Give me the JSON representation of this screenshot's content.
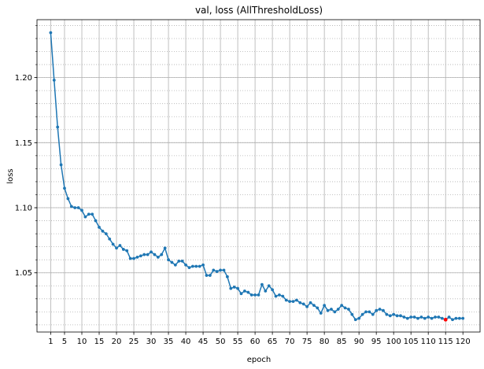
{
  "chart_data": {
    "type": "line",
    "title": "val, loss (AllThresholdLoss)",
    "xlabel": "epoch",
    "ylabel": "loss",
    "xlim": [
      -2.95,
      124.95
    ],
    "ylim": [
      1.0045,
      1.2445
    ],
    "x_ticks": [
      1,
      5,
      10,
      15,
      20,
      25,
      30,
      35,
      40,
      45,
      50,
      55,
      60,
      65,
      70,
      75,
      80,
      85,
      90,
      95,
      100,
      105,
      110,
      115,
      120
    ],
    "y_ticks": [
      1.05,
      1.1,
      1.15,
      1.2
    ],
    "y_tick_labels": [
      "1.05",
      "1.10",
      "1.15",
      "1.20"
    ],
    "y_minor_step": 0.01,
    "grid": true,
    "series": [
      {
        "color": "#1f77b4",
        "marker": "circle",
        "x": [
          1,
          2,
          3,
          4,
          5,
          6,
          7,
          8,
          9,
          10,
          11,
          12,
          13,
          14,
          15,
          16,
          17,
          18,
          19,
          20,
          21,
          22,
          23,
          24,
          25,
          26,
          27,
          28,
          29,
          30,
          31,
          32,
          33,
          34,
          35,
          36,
          37,
          38,
          39,
          40,
          41,
          42,
          43,
          44,
          45,
          46,
          47,
          48,
          49,
          50,
          51,
          52,
          53,
          54,
          55,
          56,
          57,
          58,
          59,
          60,
          61,
          62,
          63,
          64,
          65,
          66,
          67,
          68,
          69,
          70,
          71,
          72,
          73,
          74,
          75,
          76,
          77,
          78,
          79,
          80,
          81,
          82,
          83,
          84,
          85,
          86,
          87,
          88,
          89,
          90,
          91,
          92,
          93,
          94,
          95,
          96,
          97,
          98,
          99,
          100,
          101,
          102,
          103,
          104,
          105,
          106,
          107,
          108,
          109,
          110,
          111,
          112,
          113,
          114,
          115,
          116,
          117,
          118,
          119,
          120
        ],
        "y": [
          1.2345,
          1.198,
          1.162,
          1.133,
          1.115,
          1.107,
          1.101,
          1.1,
          1.1,
          1.098,
          1.093,
          1.095,
          1.095,
          1.09,
          1.085,
          1.082,
          1.08,
          1.076,
          1.072,
          1.069,
          1.071,
          1.068,
          1.067,
          1.061,
          1.061,
          1.062,
          1.063,
          1.064,
          1.064,
          1.066,
          1.064,
          1.062,
          1.064,
          1.069,
          1.06,
          1.058,
          1.056,
          1.059,
          1.059,
          1.056,
          1.054,
          1.055,
          1.055,
          1.055,
          1.056,
          1.048,
          1.048,
          1.052,
          1.051,
          1.052,
          1.052,
          1.047,
          1.038,
          1.039,
          1.038,
          1.034,
          1.036,
          1.035,
          1.033,
          1.033,
          1.033,
          1.041,
          1.036,
          1.04,
          1.037,
          1.032,
          1.033,
          1.032,
          1.029,
          1.028,
          1.028,
          1.029,
          1.027,
          1.026,
          1.024,
          1.027,
          1.025,
          1.023,
          1.019,
          1.025,
          1.021,
          1.022,
          1.02,
          1.022,
          1.025,
          1.023,
          1.022,
          1.018,
          1.014,
          1.015,
          1.018,
          1.02,
          1.02,
          1.018,
          1.021,
          1.022,
          1.021,
          1.018,
          1.017,
          1.018,
          1.017,
          1.017,
          1.016,
          1.015,
          1.016,
          1.016,
          1.015,
          1.016,
          1.015,
          1.016,
          1.015,
          1.016,
          1.016,
          1.015,
          1.014,
          1.016,
          1.014,
          1.015,
          1.015,
          1.015
        ]
      }
    ],
    "highlight_point": {
      "x": 115,
      "y": 1.014,
      "color": "#ff0000"
    }
  }
}
